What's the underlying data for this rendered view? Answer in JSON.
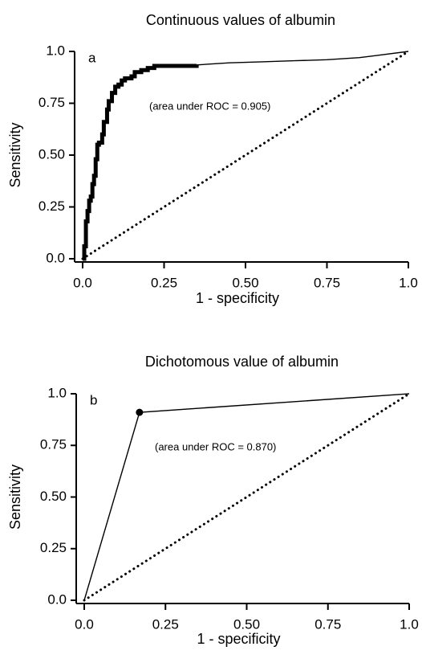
{
  "chart_data": [
    {
      "type": "line",
      "title": "Continuous values of albumin",
      "panel_label": "a",
      "xlabel": "1 - specificity",
      "ylabel": "Sensitivity",
      "annotation": "(area under ROC = 0.905)",
      "xlim": [
        0,
        1
      ],
      "ylim": [
        0,
        1
      ],
      "xticks": [
        0,
        0.25,
        0.5,
        0.75,
        1
      ],
      "xtick_labels": [
        "0.0",
        "0.25",
        "0.50",
        "0.75",
        "1.0"
      ],
      "yticks": [
        0,
        0.25,
        0.5,
        0.75,
        1
      ],
      "ytick_labels": [
        "0.0",
        "0.25",
        "0.50",
        "0.75",
        "1.0"
      ],
      "grid": false,
      "series": [
        {
          "role": "roc-curve",
          "style": "step",
          "x": [
            0.0,
            0.005,
            0.01,
            0.01,
            0.015,
            0.02,
            0.02,
            0.025,
            0.03,
            0.03,
            0.035,
            0.04,
            0.04,
            0.045,
            0.05,
            0.06,
            0.065,
            0.075,
            0.08,
            0.09,
            0.1,
            0.11,
            0.12,
            0.13,
            0.15,
            0.16,
            0.18,
            0.2,
            0.22,
            0.25,
            0.3,
            0.35,
            0.45,
            0.55,
            0.65,
            0.75,
            0.85,
            0.9,
            1.0
          ],
          "y": [
            0.0,
            0.06,
            0.12,
            0.18,
            0.23,
            0.25,
            0.28,
            0.3,
            0.32,
            0.36,
            0.4,
            0.44,
            0.48,
            0.55,
            0.56,
            0.6,
            0.66,
            0.72,
            0.76,
            0.8,
            0.83,
            0.84,
            0.86,
            0.87,
            0.88,
            0.9,
            0.91,
            0.92,
            0.93,
            0.93,
            0.93,
            0.935,
            0.945,
            0.95,
            0.955,
            0.96,
            0.97,
            0.98,
            1.0
          ]
        },
        {
          "role": "reference-diagonal",
          "style": "dotted",
          "x": [
            0,
            1
          ],
          "y": [
            0,
            1
          ]
        }
      ]
    },
    {
      "type": "line",
      "title": "Dichotomous value of albumin",
      "panel_label": "b",
      "xlabel": "1 - specificity",
      "ylabel": "Sensitivity",
      "annotation": "(area under ROC = 0.870)",
      "xlim": [
        0,
        1
      ],
      "ylim": [
        0,
        1
      ],
      "xticks": [
        0,
        0.25,
        0.5,
        0.75,
        1
      ],
      "xtick_labels": [
        "0.0",
        "0.25",
        "0.50",
        "0.75",
        "1.0"
      ],
      "yticks": [
        0,
        0.25,
        0.5,
        0.75,
        1
      ],
      "ytick_labels": [
        "0.0",
        "0.25",
        "0.50",
        "0.75",
        "1.0"
      ],
      "grid": false,
      "series": [
        {
          "role": "roc-curve",
          "style": "solid",
          "x": [
            0,
            0.17,
            1
          ],
          "y": [
            0,
            0.91,
            1
          ],
          "marked_point": [
            0.17,
            0.91
          ]
        },
        {
          "role": "reference-diagonal",
          "style": "dotted",
          "x": [
            0,
            1
          ],
          "y": [
            0,
            1
          ]
        }
      ]
    }
  ]
}
